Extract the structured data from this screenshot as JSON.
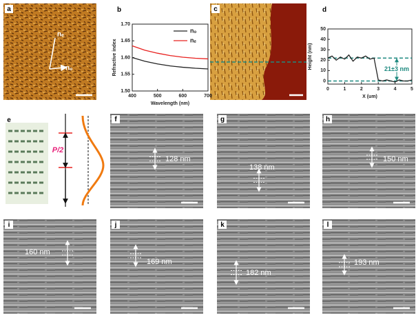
{
  "panel_labels": [
    "a",
    "b",
    "c",
    "d",
    "e",
    "f",
    "g",
    "h",
    "i",
    "j",
    "k",
    "l"
  ],
  "panel_a": {
    "axes": [
      "nₑ",
      "nₒ"
    ]
  },
  "panel_e": {
    "pitch": "P/2"
  },
  "spacings": [
    "128 nm",
    "138 nm",
    "150 nm",
    "160 nm",
    "169 nm",
    "182 nm",
    "193 nm"
  ],
  "chart_data": [
    {
      "type": "line",
      "x_label": "Wavelength (nm)",
      "y_label": "Refractive index",
      "x": [
        400,
        450,
        500,
        550,
        600,
        650,
        700
      ],
      "series": [
        {
          "name": "nₒ",
          "color": "#222222",
          "values": [
            1.6,
            1.589,
            1.581,
            1.575,
            1.571,
            1.568,
            1.566
          ]
        },
        {
          "name": "nₑ",
          "color": "#e8201e",
          "values": [
            1.635,
            1.622,
            1.613,
            1.606,
            1.601,
            1.598,
            1.596
          ]
        }
      ],
      "xlim": [
        400,
        700
      ],
      "xticks": [
        400,
        500,
        600,
        700
      ],
      "ylim": [
        1.5,
        1.7
      ],
      "yticks": [
        {
          "value": 1.5,
          "label": "1.50"
        },
        {
          "value": 1.55,
          "label": "1.55"
        },
        {
          "value": 1.6,
          "label": "1.60"
        },
        {
          "value": 1.65,
          "label": "1.65"
        },
        {
          "value": 1.7,
          "label": "1.70"
        }
      ],
      "legend": "upper right"
    },
    {
      "type": "line",
      "x_label": "X (um)",
      "y_label": "Height (nm)",
      "x": [
        0,
        0.25,
        0.5,
        0.75,
        1,
        1.25,
        1.5,
        1.75,
        2,
        2.25,
        2.5,
        2.75,
        3,
        3.25,
        3.5,
        3.75,
        4,
        4.25,
        4.5,
        4.75,
        5
      ],
      "series": [
        {
          "color": "#222222",
          "values": [
            22,
            24,
            20,
            23,
            21,
            25,
            19,
            23,
            22,
            24,
            21,
            22,
            1,
            0,
            1,
            0,
            -1,
            1,
            0,
            0,
            1
          ]
        }
      ],
      "xlim": [
        0,
        5
      ],
      "xticks": [
        0,
        1,
        2,
        3,
        4,
        5
      ],
      "ylim": [
        -3,
        50
      ],
      "yticks": [
        0,
        10,
        20,
        30,
        40,
        50
      ],
      "hlines": [
        22,
        0
      ],
      "hline_color": "#1f8a80",
      "annotation": "21±3 nm"
    }
  ]
}
